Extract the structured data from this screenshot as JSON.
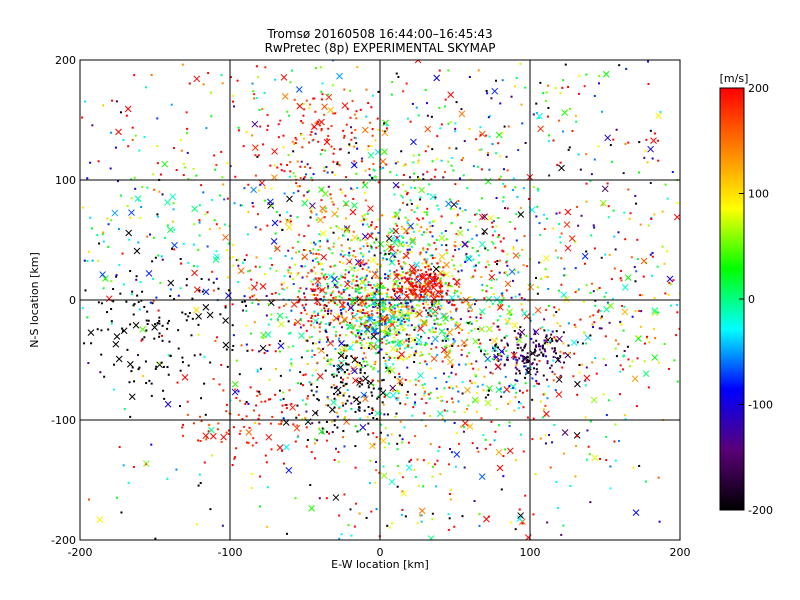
{
  "chart_data": {
    "type": "scatter",
    "title": "Tromsø 20160508 16:44:00–16:45:43",
    "subtitle": "RwPretec (8p) EXPERIMENTAL SKYMAP",
    "xlabel": "E-W location [km]",
    "ylabel": "N-S location [km]",
    "xlim": [
      -200,
      200
    ],
    "ylim": [
      -200,
      200
    ],
    "x_ticks": [
      "-200",
      "-100",
      "0",
      "100",
      "200"
    ],
    "y_ticks": [
      "-200",
      "-100",
      "0",
      "100",
      "200"
    ],
    "grid": true,
    "colorbar": {
      "label": "[m/s]",
      "range": [
        -200,
        200
      ],
      "ticks": [
        "-200",
        "-100",
        "0",
        "100",
        "200"
      ],
      "colors": [
        "#000000",
        "#5a0078",
        "#0000ff",
        "#00ffff",
        "#00ff00",
        "#ffff00",
        "#ff8000",
        "#ff0000"
      ]
    },
    "marker_types": [
      "dot",
      "cross"
    ],
    "clusters": [
      {
        "x": 10,
        "y": 0,
        "spread": 45,
        "n": 900,
        "color_mean": 40,
        "color_spread": 110
      },
      {
        "x": 0,
        "y": -10,
        "spread": 18,
        "n": 350,
        "color_mean": 30,
        "color_spread": 80
      },
      {
        "x": 30,
        "y": 12,
        "spread": 10,
        "n": 160,
        "color_mean": 195,
        "color_spread": 10
      },
      {
        "x": -40,
        "y": 0,
        "spread": 14,
        "n": 80,
        "color_mean": 195,
        "color_spread": 15
      },
      {
        "x": -10,
        "y": 60,
        "spread": 60,
        "n": 500,
        "color_mean": 80,
        "color_spread": 130
      },
      {
        "x": -40,
        "y": 140,
        "spread": 20,
        "n": 90,
        "color_mean": 190,
        "color_spread": 20
      },
      {
        "x": 100,
        "y": -45,
        "spread": 12,
        "n": 150,
        "color_mean": -170,
        "color_spread": 40
      },
      {
        "x": -150,
        "y": -30,
        "spread": 30,
        "n": 140,
        "color_mean": -200,
        "color_spread": 5
      },
      {
        "x": -20,
        "y": -75,
        "spread": 20,
        "n": 130,
        "color_mean": -200,
        "color_spread": 5
      },
      {
        "x": -90,
        "y": -100,
        "spread": 20,
        "n": 90,
        "color_mean": 190,
        "color_spread": 20
      },
      {
        "x": 40,
        "y": -100,
        "spread": 60,
        "n": 450,
        "color_mean": 60,
        "color_spread": 150
      },
      {
        "x": -150,
        "y": 50,
        "spread": 35,
        "n": 90,
        "color_mean": -20,
        "color_spread": 60
      },
      {
        "x": 150,
        "y": 0,
        "spread": 45,
        "n": 220,
        "color_mean": 80,
        "color_spread": 140
      },
      {
        "x": 120,
        "y": 140,
        "spread": 60,
        "n": 200,
        "color_mean": 0,
        "color_spread": 200
      },
      {
        "x": -100,
        "y": 150,
        "spread": 60,
        "n": 120,
        "color_mean": 150,
        "color_spread": 100
      },
      {
        "x": 0,
        "y": 0,
        "spread": 150,
        "n": 500,
        "color_mean": 20,
        "color_spread": 200
      }
    ]
  }
}
